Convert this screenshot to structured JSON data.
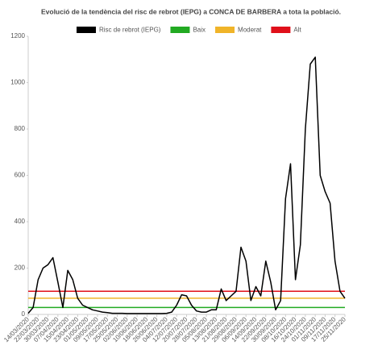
{
  "chart_data": {
    "type": "line",
    "title": "Evolució de la tendència del risc de rebrot (IEPG) a CONCA DE BARBERA a tota la població.",
    "categories": [
      "14/03/2020",
      null,
      "22/03/2020",
      null,
      "30/03/2020",
      null,
      "07/04/2020",
      null,
      "15/04/2020",
      null,
      "23/04/2020",
      null,
      "01/05/2020",
      null,
      "09/05/2020",
      null,
      "17/05/2020",
      null,
      "25/05/2020",
      null,
      "02/06/2020",
      null,
      "10/06/2020",
      null,
      "18/06/2020",
      null,
      "26/06/2020",
      null,
      "04/07/2020",
      null,
      "12/07/2020",
      null,
      "20/07/2020",
      null,
      "28/07/2020",
      null,
      "05/08/2020",
      null,
      "13/08/2020",
      null,
      "21/08/2020",
      null,
      "29/08/2020",
      null,
      "06/09/2020",
      null,
      "14/09/2020",
      null,
      "22/09/2020",
      null,
      "30/09/2020",
      null,
      "08/10/2020",
      null,
      "16/10/2020",
      null,
      "24/10/2020",
      null,
      "01/11/2020",
      null,
      "09/11/2020",
      null,
      "17/11/2020",
      null,
      "25/11/2020"
    ],
    "series": [
      {
        "name": "Risc de rebrot (IEPG)",
        "color": "#000000",
        "values": [
          5,
          30,
          150,
          200,
          215,
          245,
          140,
          30,
          190,
          150,
          70,
          40,
          30,
          20,
          15,
          10,
          8,
          5,
          5,
          5,
          4,
          4,
          4,
          4,
          4,
          4,
          4,
          4,
          5,
          10,
          40,
          85,
          80,
          40,
          15,
          10,
          10,
          20,
          20,
          110,
          60,
          80,
          100,
          290,
          230,
          60,
          120,
          80,
          230,
          140,
          20,
          60,
          500,
          650,
          150,
          300,
          800,
          1080,
          1110,
          600,
          530,
          480,
          230,
          100,
          70
        ]
      }
    ],
    "thresholds": [
      {
        "name": "Baix",
        "color": "#22aa22",
        "value": 30
      },
      {
        "name": "Moderat",
        "color": "#f0b429",
        "value": 70
      },
      {
        "name": "Alt",
        "color": "#e0101a",
        "value": 100
      }
    ],
    "ylim": [
      0,
      1200
    ],
    "yticks": [
      0,
      200,
      400,
      600,
      800,
      1000,
      1200
    ]
  }
}
